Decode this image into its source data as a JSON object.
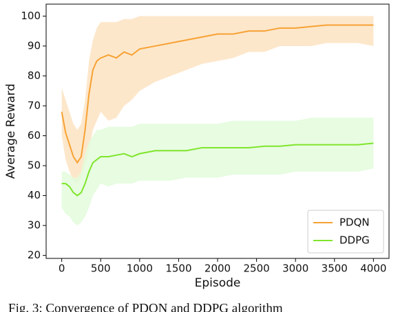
{
  "chart_data": {
    "type": "line",
    "x_label": "Episode",
    "y_label": "Average Reward",
    "caption": "Fig. 3: Convergence of PDQN and DDPG algorithm",
    "x": [
      0,
      50,
      100,
      150,
      200,
      250,
      300,
      350,
      400,
      450,
      500,
      600,
      700,
      800,
      900,
      1000,
      1200,
      1400,
      1600,
      1800,
      2000,
      2200,
      2400,
      2600,
      2800,
      3000,
      3200,
      3400,
      3600,
      3800,
      4000
    ],
    "series": [
      {
        "name": "PDQN",
        "color": "#f7a132",
        "band_color": "#fde3c2",
        "values": [
          68,
          61,
          57,
          53,
          51,
          53,
          62,
          74,
          82,
          85,
          86,
          87,
          86,
          88,
          87,
          89,
          90,
          91,
          92,
          93,
          94,
          94,
          95,
          95,
          96,
          96,
          96.5,
          97,
          97,
          97,
          97
        ],
        "lower": [
          60,
          52,
          48,
          45,
          44,
          46,
          50,
          55,
          62,
          65,
          68,
          65,
          66,
          70,
          72,
          75,
          78,
          80,
          82,
          84,
          85,
          86,
          88,
          88,
          90,
          90,
          90,
          91,
          91,
          91,
          90
        ],
        "upper": [
          76,
          72,
          68,
          64,
          62,
          64,
          72,
          85,
          92,
          96,
          98,
          98,
          98,
          99,
          99,
          100,
          100,
          100,
          100,
          100,
          100,
          100,
          100,
          100,
          100,
          100,
          100,
          100,
          100,
          100,
          100
        ]
      },
      {
        "name": "DDPG",
        "color": "#7fe52a",
        "band_color": "#e3fbdc",
        "values": [
          44,
          44,
          43,
          41,
          40,
          41,
          44,
          48,
          51,
          52,
          53,
          53,
          53.5,
          54,
          53,
          54,
          55,
          55,
          55,
          56,
          56,
          56,
          56,
          56.5,
          56.5,
          57,
          57,
          57,
          57,
          57,
          57.5
        ],
        "lower": [
          36,
          34,
          33,
          31,
          30,
          31,
          33,
          36,
          40,
          42,
          44,
          43,
          44,
          44,
          44,
          45,
          45,
          45,
          46,
          46,
          46,
          47,
          47,
          47,
          47,
          48,
          48,
          48,
          48,
          48,
          49
        ],
        "upper": [
          48,
          48,
          47,
          46,
          46,
          48,
          54,
          58,
          60,
          62,
          62,
          63,
          63,
          63,
          63,
          64,
          64,
          64,
          64,
          64,
          64,
          65,
          65,
          65,
          65,
          65,
          66,
          66,
          66,
          66,
          66
        ]
      }
    ],
    "xlim": [
      -200,
      4200
    ],
    "xticks": [
      0,
      500,
      1000,
      1500,
      2000,
      2500,
      3000,
      3500,
      4000
    ],
    "ylim": [
      19,
      104
    ],
    "yticks": [
      20,
      30,
      40,
      50,
      60,
      70,
      80,
      90,
      100
    ],
    "legend": "lower right"
  }
}
